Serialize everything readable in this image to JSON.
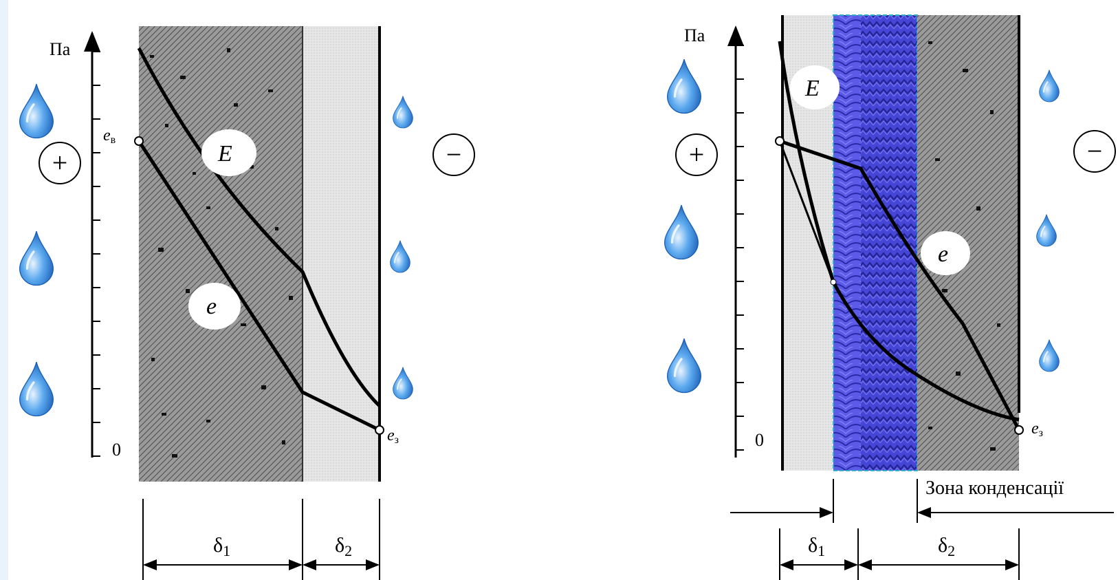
{
  "left_diagram": {
    "axis_unit": "Па",
    "axis_zero": "0",
    "label_inner_vapor": "e",
    "label_inner_vapor_sub": "в",
    "label_outer_vapor": "e",
    "label_outer_vapor_sub": "з",
    "curve_E": "E",
    "curve_e": "e",
    "sign_inside": "+",
    "sign_outside": "−",
    "dim_1": "δ",
    "dim_1_sub": "1",
    "dim_2": "δ",
    "dim_2_sub": "2"
  },
  "right_diagram": {
    "axis_unit": "Па",
    "axis_zero": "0",
    "label_outer_vapor": "e",
    "label_outer_vapor_sub": "з",
    "curve_E": "E",
    "curve_e": "e",
    "sign_inside": "+",
    "sign_outside": "−",
    "condensation_zone": "Зона конденсації",
    "dim_1": "δ",
    "dim_1_sub": "1",
    "dim_2": "δ",
    "dim_2_sub": "2"
  },
  "colors": {
    "dark_layer": "#8f8f8f",
    "light_layer": "#e4e4e4",
    "insulation": "#5a5ae6",
    "insulation_dark": "#2f2fb0",
    "drop": "#2d7bd6",
    "stroke": "#000000"
  }
}
